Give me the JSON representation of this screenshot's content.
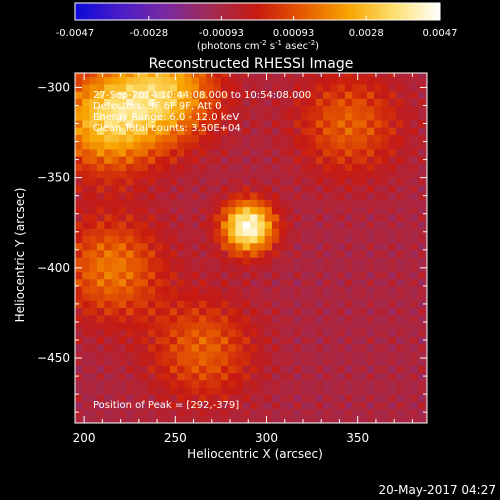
{
  "chart_data": {
    "type": "heatmap",
    "title": "Reconstructed RHESSI Image",
    "xlabel": "Heliocentric X (arcsec)",
    "ylabel": "Heliocentric Y (arcsec)",
    "xlim": [
      195,
      388
    ],
    "ylim": [
      -486,
      -292
    ],
    "x_ticks": [
      200,
      250,
      300,
      350
    ],
    "y_ticks": [
      -300,
      -350,
      -400,
      -450
    ],
    "colorbar": {
      "range": [
        -0.0047,
        0.0047
      ],
      "tick_values": [
        -0.0047,
        -0.0028,
        -0.00093,
        0.00093,
        0.0028,
        0.0047
      ],
      "tick_labels": [
        "-0.0047",
        "-0.0028",
        "-0.00093",
        "0.00093",
        "0.0028",
        "0.0047"
      ],
      "unit_label": "(photons cm",
      "unit_exp1": "-2",
      "unit_mid1": " s",
      "unit_exp2": "-1",
      "unit_mid2": " asec",
      "unit_exp3": "-2",
      "unit_end": ")",
      "colors": [
        "#0a0ad8",
        "#4a1cc8",
        "#7a2aa0",
        "#a22a50",
        "#c81a10",
        "#e65a00",
        "#f8a400",
        "#fde070",
        "#ffffff"
      ]
    },
    "annotations": [
      "27-Sep-2014 10:44:08.000 to 10:54:08.000",
      "Detectors: 3F 6F 9F, Att 0",
      "Energy Range: 6.0 - 12.0 keV",
      "Clean    Total counts: 3.50E+04"
    ],
    "peak_label": "Position of Peak = [292,-379]",
    "peak": [
      292,
      -379
    ],
    "peak_value": 0.0047,
    "sources": [
      {
        "x": 290,
        "y": -377,
        "value": 0.0047
      },
      {
        "x": 212,
        "y": -318,
        "value": 0.0028
      },
      {
        "x": 245,
        "y": -302,
        "value": 0.0026
      },
      {
        "x": 265,
        "y": -445,
        "value": 0.0012
      },
      {
        "x": 345,
        "y": -320,
        "value": 0.0012
      },
      {
        "x": 215,
        "y": -400,
        "value": 0.0016
      }
    ],
    "background_value": -0.0009,
    "grid": false
  },
  "footer": {
    "timestamp": "20-May-2017 04:27"
  }
}
